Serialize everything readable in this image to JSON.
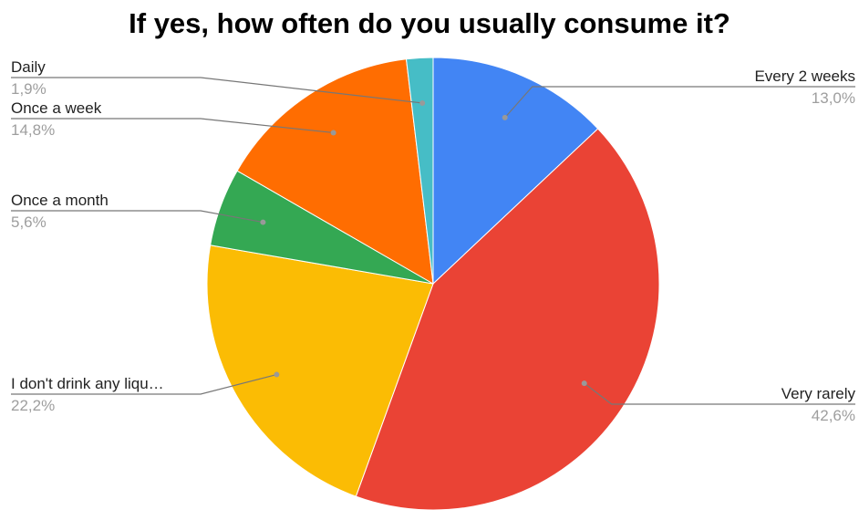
{
  "chart_data": {
    "type": "pie",
    "title": "If yes, how often do you usually consume it?",
    "slices": [
      {
        "label": "Every 2 weeks",
        "value_label": "13,0%",
        "value": 13.0,
        "color": "#4285f4",
        "label_side": "right"
      },
      {
        "label": "Very rarely",
        "value_label": "42,6%",
        "value": 42.6,
        "color": "#ea4335",
        "label_side": "right"
      },
      {
        "label": "I don't drink any liqu…",
        "value_label": "22,2%",
        "value": 22.2,
        "color": "#fbbc04",
        "label_side": "left"
      },
      {
        "label": "Once a month",
        "value_label": "5,6%",
        "value": 5.6,
        "color": "#34a853",
        "label_side": "left"
      },
      {
        "label": "Once a week",
        "value_label": "14,8%",
        "value": 14.8,
        "color": "#ff6d01",
        "label_side": "left"
      },
      {
        "label": "Daily",
        "value_label": "1,9%",
        "value": 1.9,
        "color": "#46bdc6",
        "label_side": "left"
      }
    ],
    "start_angle": 0,
    "direction": "clockwise"
  }
}
